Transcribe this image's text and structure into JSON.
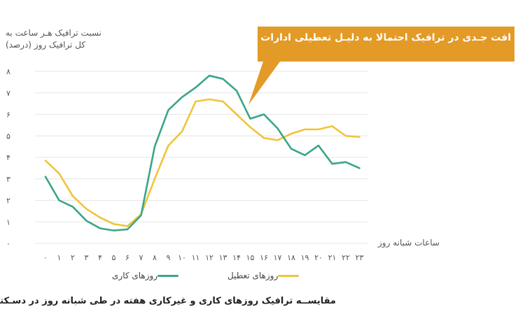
{
  "chart_data": {
    "type": "line",
    "ylabel": [
      "نسبت ترافیک هـر ساعت به",
      "کل ترافیک روز (درصد)"
    ],
    "xlabel": "ساعات شبانه روز",
    "x": [
      0,
      1,
      2,
      3,
      4,
      5,
      6,
      7,
      8,
      9,
      10,
      11,
      12,
      13,
      14,
      15,
      16,
      17,
      18,
      19,
      20,
      21,
      22,
      23
    ],
    "x_tick_labels": [
      "۰",
      "۱",
      "۲",
      "۳",
      "۴",
      "۵",
      "۶",
      "۷",
      "۸",
      "۹",
      "۱۰",
      "۱۱",
      "۱۲",
      "۱۳",
      "۱۴",
      "۱۵",
      "۱۶",
      "۱۷",
      "۱۸",
      "۱۹",
      "۲۰",
      "۲۱",
      "۲۲",
      "۲۳"
    ],
    "y_ticks": [
      0,
      1,
      2,
      3,
      4,
      5,
      6,
      7,
      8
    ],
    "y_tick_labels": [
      "۰",
      "۱",
      "۲",
      "۳",
      "۴",
      "۵",
      "۶",
      "۷",
      "۸"
    ],
    "ylim": [
      0,
      8
    ],
    "grid": true,
    "legend_position": "bottom",
    "series": [
      {
        "name": "روزهای کاری",
        "color": "#3aa58a",
        "values": [
          3.1,
          2.0,
          1.7,
          1.05,
          0.7,
          0.6,
          0.65,
          1.3,
          4.5,
          6.2,
          6.8,
          7.25,
          7.8,
          7.65,
          7.1,
          5.8,
          6.0,
          5.35,
          4.4,
          4.1,
          4.55,
          3.7,
          3.78,
          3.5
        ]
      },
      {
        "name": "روزهای تعطیل",
        "color": "#f0c43a",
        "values": [
          3.85,
          3.25,
          2.2,
          1.6,
          1.2,
          0.9,
          0.8,
          1.35,
          3.0,
          4.55,
          5.2,
          6.6,
          6.7,
          6.6,
          6.0,
          5.4,
          4.9,
          4.8,
          5.1,
          5.3,
          5.3,
          5.45,
          5.0,
          4.95
        ]
      }
    ],
    "annotation": "افت جـدی در ترافیک احتمالا به دلیـل تعطیلی ادارات",
    "annotation_color": "#e39a26",
    "caption": "مقایســه ترافیک روزهای کاری و غیرکاری هفته در طی شبانه روز در دسـکتاپ"
  }
}
